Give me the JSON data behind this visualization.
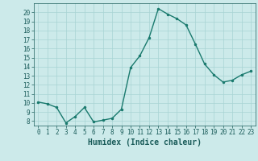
{
  "x": [
    0,
    1,
    2,
    3,
    4,
    5,
    6,
    7,
    8,
    9,
    10,
    11,
    12,
    13,
    14,
    15,
    16,
    17,
    18,
    19,
    20,
    21,
    22,
    23
  ],
  "y": [
    10.1,
    9.9,
    9.5,
    7.8,
    8.5,
    9.5,
    7.9,
    8.1,
    8.3,
    9.3,
    13.9,
    15.2,
    17.2,
    20.4,
    19.8,
    19.3,
    18.6,
    16.5,
    14.3,
    13.1,
    12.3,
    12.5,
    13.1,
    13.5
  ],
  "line_color": "#1a7a6e",
  "marker": ".",
  "marker_size": 3,
  "bg_color": "#cceaea",
  "grid_color": "#a8d4d4",
  "tick_color": "#1a5c5a",
  "label_color": "#1a5c5a",
  "xlabel": "Humidex (Indice chaleur)",
  "ylim": [
    7.5,
    21.0
  ],
  "xlim": [
    -0.5,
    23.5
  ],
  "yticks": [
    8,
    9,
    10,
    11,
    12,
    13,
    14,
    15,
    16,
    17,
    18,
    19,
    20
  ],
  "xticks": [
    0,
    1,
    2,
    3,
    4,
    5,
    6,
    7,
    8,
    9,
    10,
    11,
    12,
    13,
    14,
    15,
    16,
    17,
    18,
    19,
    20,
    21,
    22,
    23
  ],
  "xtick_labels": [
    "0",
    "1",
    "2",
    "3",
    "4",
    "5",
    "6",
    "7",
    "8",
    "9",
    "10",
    "11",
    "12",
    "13",
    "14",
    "15",
    "16",
    "17",
    "18",
    "19",
    "20",
    "21",
    "22",
    "23"
  ],
  "ytick_labels": [
    "8",
    "9",
    "10",
    "11",
    "12",
    "13",
    "14",
    "15",
    "16",
    "17",
    "18",
    "19",
    "20"
  ],
  "font_size": 5.5,
  "xlabel_size": 7.0,
  "line_width": 1.0
}
